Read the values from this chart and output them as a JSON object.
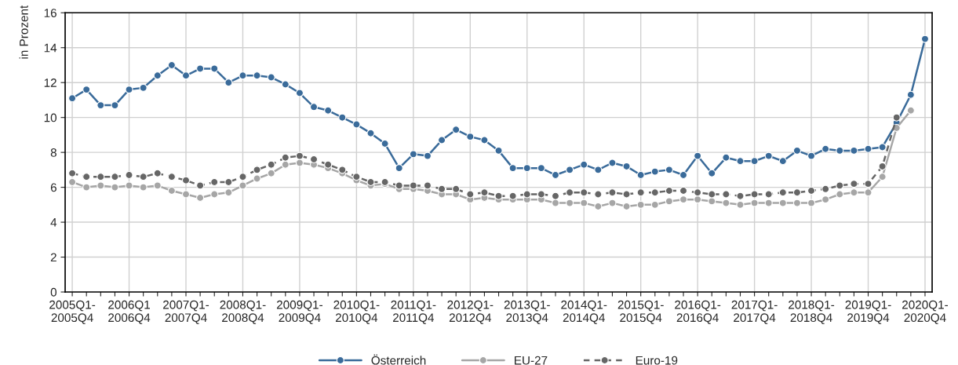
{
  "chart_data": {
    "type": "line",
    "ylabel": "in Prozent",
    "categories": [
      "2005Q1-\n2005Q4",
      null,
      null,
      null,
      "2006Q1\n2006Q4",
      null,
      null,
      null,
      "2007Q1-\n2007Q4",
      null,
      null,
      null,
      "2008Q1-\n2008Q4",
      null,
      null,
      null,
      "2009Q1-\n2009Q4",
      null,
      null,
      null,
      "2010Q1-\n2010Q4",
      null,
      null,
      null,
      "2011Q1-\n2011Q4",
      null,
      null,
      null,
      "2012Q1-\n2012Q4",
      null,
      null,
      null,
      "2013Q1-\n2013Q4",
      null,
      null,
      null,
      "2014Q1-\n2014Q4",
      null,
      null,
      null,
      "2015Q1-\n2015Q4",
      null,
      null,
      null,
      "2016Q1-\n2016Q4",
      null,
      null,
      null,
      "2017Q1-\n2017Q4",
      null,
      null,
      null,
      "2018Q1-\n2018Q4",
      null,
      null,
      null,
      "2019Q1-\n2019Q4",
      null,
      null,
      null,
      "2020Q1-\n2020Q4"
    ],
    "series": [
      {
        "name": "Österreich",
        "color": "#3a6b9a",
        "line_style": "solid",
        "values": [
          11.1,
          11.6,
          10.7,
          10.7,
          11.6,
          11.7,
          12.4,
          13.0,
          12.4,
          12.8,
          12.8,
          12.0,
          12.4,
          12.4,
          12.3,
          11.9,
          11.4,
          10.6,
          10.4,
          10.0,
          9.6,
          9.1,
          8.5,
          7.1,
          7.9,
          7.8,
          8.7,
          9.3,
          8.9,
          8.7,
          8.1,
          7.1,
          7.1,
          7.1,
          6.7,
          7.0,
          7.3,
          7.0,
          7.4,
          7.2,
          6.7,
          6.9,
          7.0,
          6.7,
          7.8,
          6.8,
          7.7,
          7.5,
          7.5,
          7.8,
          7.5,
          8.1,
          7.8,
          8.2,
          8.1,
          8.1,
          8.2,
          8.3,
          9.7,
          11.3,
          14.5
        ]
      },
      {
        "name": "EU-27",
        "color": "#a6a6a6",
        "line_style": "solid",
        "values": [
          6.3,
          6.0,
          6.1,
          6.0,
          6.1,
          6.0,
          6.1,
          5.8,
          5.6,
          5.4,
          5.6,
          5.7,
          6.1,
          6.5,
          6.8,
          7.3,
          7.4,
          7.3,
          7.1,
          6.8,
          6.4,
          6.1,
          6.2,
          5.9,
          5.9,
          5.8,
          5.6,
          5.6,
          5.3,
          5.4,
          5.3,
          5.3,
          5.3,
          5.3,
          5.1,
          5.1,
          5.1,
          4.9,
          5.1,
          4.9,
          5.0,
          5.0,
          5.2,
          5.3,
          5.3,
          5.2,
          5.1,
          5.0,
          5.1,
          5.1,
          5.1,
          5.1,
          5.1,
          5.3,
          5.6,
          5.7,
          5.7,
          6.6,
          9.4,
          10.4,
          null
        ]
      },
      {
        "name": "Euro-19",
        "color": "#666666",
        "line_style": "dashed",
        "values": [
          6.8,
          6.6,
          6.6,
          6.6,
          6.7,
          6.6,
          6.8,
          6.6,
          6.4,
          6.1,
          6.3,
          6.3,
          6.6,
          7.0,
          7.3,
          7.7,
          7.8,
          7.6,
          7.3,
          7.0,
          6.6,
          6.3,
          6.3,
          6.1,
          6.1,
          6.1,
          5.9,
          5.9,
          5.6,
          5.7,
          5.5,
          5.5,
          5.6,
          5.6,
          5.5,
          5.7,
          5.7,
          5.6,
          5.7,
          5.6,
          5.7,
          5.7,
          5.8,
          5.8,
          5.7,
          5.6,
          5.6,
          5.5,
          5.6,
          5.6,
          5.7,
          5.7,
          5.8,
          5.9,
          6.1,
          6.2,
          6.2,
          7.2,
          10.0,
          null,
          null
        ]
      }
    ],
    "ylim": [
      0,
      16
    ],
    "yticks": [
      0,
      2,
      4,
      6,
      8,
      10,
      12,
      14,
      16
    ],
    "grid": true,
    "legend": "bottom",
    "marker": "circle"
  }
}
